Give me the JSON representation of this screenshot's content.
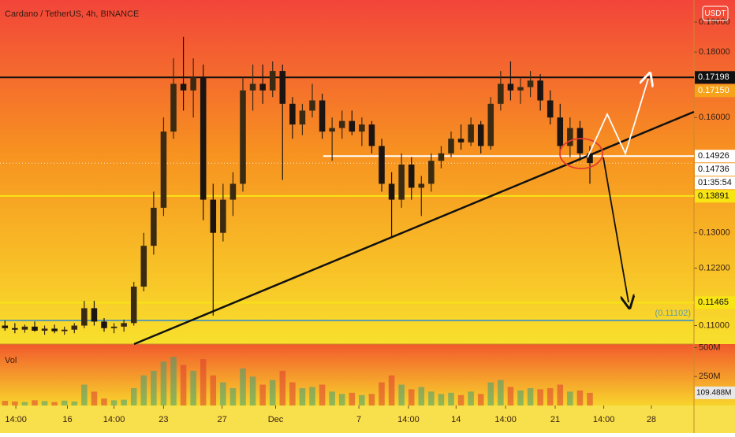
{
  "chart_data": {
    "type": "candlestick",
    "title": "Cardano / TetherUS, 4h, BINANCE",
    "currency_button": "USDT",
    "log_scale": true,
    "up_color": "#3a2a12",
    "down_color": "#1b1410",
    "xlim": [
      -0.5,
      69.5
    ],
    "xticks": [
      {
        "value": 1.1,
        "label": "14:00"
      },
      {
        "value": 6.3,
        "label": "16"
      },
      {
        "value": 11.0,
        "label": "14:00"
      },
      {
        "value": 16.0,
        "label": "23"
      },
      {
        "value": 21.9,
        "label": "27"
      },
      {
        "value": 27.3,
        "label": "Dec"
      },
      {
        "value": 35.7,
        "label": "7"
      },
      {
        "value": 40.7,
        "label": "14:00"
      },
      {
        "value": 45.5,
        "label": "14"
      },
      {
        "value": 50.5,
        "label": "14:00"
      },
      {
        "value": 55.5,
        "label": "21"
      },
      {
        "value": 60.4,
        "label": "14:00"
      },
      {
        "value": 65.2,
        "label": "28"
      }
    ],
    "ylim": [
      0.1064,
      0.1977
    ],
    "yticks": [
      {
        "value": 0.19,
        "label": "0.19000"
      },
      {
        "value": 0.18,
        "label": "0.18000"
      },
      {
        "value": 0.16,
        "label": "0.16000"
      },
      {
        "value": 0.13,
        "label": "0.13000"
      },
      {
        "value": 0.122,
        "label": "0.12200"
      },
      {
        "value": 0.11,
        "label": "0.11000"
      }
    ],
    "open": [
      0.11,
      0.1095,
      0.1092,
      0.1098,
      0.109,
      0.1094,
      0.1089,
      0.1092,
      0.11,
      0.1135,
      0.1108,
      0.1095,
      0.1098,
      0.1105,
      0.118,
      0.127,
      0.136,
      0.156,
      0.17,
      0.168,
      0.172,
      0.138,
      0.13,
      0.138,
      0.142,
      0.168,
      0.17,
      0.168,
      0.174,
      0.164,
      0.158,
      0.162,
      0.165,
      0.156,
      0.157,
      0.159,
      0.156,
      0.158,
      0.152,
      0.142,
      0.138,
      0.147,
      0.141,
      0.142,
      0.148,
      0.15,
      0.154,
      0.153,
      0.158,
      0.152,
      0.164,
      0.17,
      0.168,
      0.169,
      0.171,
      0.165,
      0.16,
      0.152,
      0.157,
      0.15
    ],
    "high": [
      0.111,
      0.1105,
      0.1102,
      0.1108,
      0.11,
      0.1102,
      0.1098,
      0.1105,
      0.115,
      0.115,
      0.1115,
      0.1105,
      0.1112,
      0.119,
      0.13,
      0.14,
      0.16,
      0.178,
      0.185,
      0.178,
      0.176,
      0.142,
      0.142,
      0.145,
      0.172,
      0.176,
      0.176,
      0.177,
      0.176,
      0.166,
      0.164,
      0.17,
      0.167,
      0.16,
      0.162,
      0.162,
      0.16,
      0.159,
      0.154,
      0.145,
      0.15,
      0.149,
      0.144,
      0.15,
      0.152,
      0.156,
      0.158,
      0.16,
      0.159,
      0.166,
      0.174,
      0.177,
      0.172,
      0.174,
      0.173,
      0.168,
      0.164,
      0.16,
      0.159,
      0.152
    ],
    "low": [
      0.109,
      0.1085,
      0.1086,
      0.1088,
      0.1082,
      0.1085,
      0.1082,
      0.1085,
      0.1095,
      0.11,
      0.1088,
      0.1085,
      0.1088,
      0.11,
      0.117,
      0.125,
      0.134,
      0.154,
      0.162,
      0.16,
      0.133,
      0.112,
      0.128,
      0.134,
      0.14,
      0.162,
      0.164,
      0.166,
      0.143,
      0.154,
      0.155,
      0.16,
      0.154,
      0.148,
      0.154,
      0.155,
      0.152,
      0.15,
      0.14,
      0.129,
      0.136,
      0.138,
      0.134,
      0.14,
      0.146,
      0.149,
      0.151,
      0.152,
      0.15,
      0.151,
      0.162,
      0.165,
      0.164,
      0.166,
      0.162,
      0.158,
      0.15,
      0.149,
      0.148,
      0.142
    ],
    "close": [
      0.1095,
      0.1092,
      0.1098,
      0.109,
      0.1094,
      0.1089,
      0.1092,
      0.11,
      0.1135,
      0.1108,
      0.1095,
      0.1098,
      0.1105,
      0.118,
      0.127,
      0.136,
      0.156,
      0.17,
      0.168,
      0.172,
      0.138,
      0.13,
      0.138,
      0.142,
      0.168,
      0.17,
      0.168,
      0.174,
      0.164,
      0.158,
      0.162,
      0.165,
      0.156,
      0.157,
      0.159,
      0.156,
      0.158,
      0.152,
      0.142,
      0.138,
      0.147,
      0.141,
      0.142,
      0.148,
      0.15,
      0.154,
      0.153,
      0.158,
      0.152,
      0.164,
      0.17,
      0.168,
      0.169,
      0.171,
      0.165,
      0.16,
      0.152,
      0.157,
      0.15,
      0.1474
    ],
    "current_price": {
      "value": 0.14736,
      "label": "0.14736",
      "countdown": "01:35:54"
    },
    "levels": [
      {
        "value": 0.17198,
        "label": "0.17198",
        "color": "#111111",
        "text_color": "#ffffff",
        "line": true,
        "from": -0.5
      },
      {
        "value": 0.1715,
        "label": "0.17150",
        "color": "#f7a21b",
        "text_color": "#ffffff",
        "line": false,
        "from": -0.5
      },
      {
        "value": 0.14926,
        "label": "0.14926",
        "color": "#ffffff",
        "text_color": "#111111",
        "line": true,
        "from": 32.1
      },
      {
        "value": 0.13891,
        "label": "0.13891",
        "color": "#f7e514",
        "text_color": "#111111",
        "line": true,
        "from": -0.5
      },
      {
        "value": 0.11465,
        "label": "0.11465",
        "color": "#f7e514",
        "text_color": "#111111",
        "line": true,
        "from": -0.5
      }
    ],
    "support": {
      "value": 0.11102,
      "label": "(0.11102)",
      "color": "#5f9ea8"
    },
    "volume": {
      "name": "Vol",
      "ylim": [
        0,
        530
      ],
      "yticks": [
        {
          "value": 500,
          "label": "500M"
        },
        {
          "value": 250,
          "label": "250M"
        }
      ],
      "values": [
        40,
        35,
        30,
        45,
        38,
        30,
        42,
        35,
        180,
        120,
        60,
        45,
        50,
        150,
        260,
        300,
        380,
        420,
        350,
        300,
        400,
        260,
        200,
        150,
        320,
        250,
        180,
        220,
        300,
        200,
        150,
        160,
        180,
        120,
        100,
        110,
        90,
        100,
        200,
        260,
        180,
        140,
        160,
        120,
        100,
        110,
        90,
        120,
        100,
        200,
        220,
        160,
        130,
        150,
        140,
        150,
        180,
        120,
        130,
        109.488
      ],
      "last_value_label": "109.488M",
      "up_color": "rgba(60,160,120,0.55)",
      "down_color": "rgba(220,60,50,0.55)"
    }
  }
}
